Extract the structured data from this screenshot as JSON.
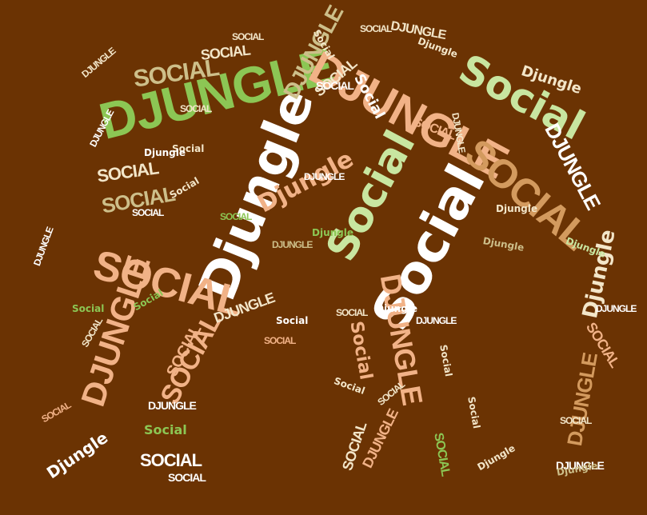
{
  "background": "#6b3303",
  "palette": {
    "white": "#ffffff",
    "cream": "#f3e6c9",
    "peach": "#f1b287",
    "green": "#8cc654",
    "pale_green": "#c8e6a0",
    "tan": "#d39a5e",
    "khaki": "#cdbf8a"
  },
  "words": [
    {
      "text": "DJUNGLE"
    },
    {
      "text": "Djungle"
    },
    {
      "text": "Social"
    },
    {
      "text": "Social"
    },
    {
      "text": "DJUNGLE"
    },
    {
      "text": "Social"
    },
    {
      "text": "SOCIAL"
    },
    {
      "text": "SOCIAL"
    },
    {
      "text": "SOCIAL"
    },
    {
      "text": "DJUNGLE"
    },
    {
      "text": "DJUNGLE"
    },
    {
      "text": "DJUNGLE"
    },
    {
      "text": "DJUNGLE"
    },
    {
      "text": "DJUNGLE"
    },
    {
      "text": "Djungle"
    },
    {
      "text": "Djungle"
    },
    {
      "text": "SOCIAL"
    },
    {
      "text": "SOCIAL"
    },
    {
      "text": "SOCIAL"
    },
    {
      "text": "SOCIAL"
    },
    {
      "text": "SOCIAL"
    },
    {
      "text": "SOCIAL"
    },
    {
      "text": "DJUNGLE"
    },
    {
      "text": "Social"
    },
    {
      "text": "SOCIAL"
    },
    {
      "text": "Djungle"
    },
    {
      "text": "SOCIAL"
    },
    {
      "text": "Social"
    },
    {
      "text": "DJUNGLE"
    },
    {
      "text": "Djungle"
    },
    {
      "text": "SOCIAL"
    },
    {
      "text": "DJUNGLE"
    },
    {
      "text": "Social"
    },
    {
      "text": "SOCIAL"
    },
    {
      "text": "DJUNGLE"
    },
    {
      "text": "SOCIAL"
    },
    {
      "text": "SOCIAL"
    },
    {
      "text": "SOCIAL"
    },
    {
      "text": "DJUNGLE"
    },
    {
      "text": "Social"
    },
    {
      "text": "Djungle"
    },
    {
      "text": "SOCIAL"
    },
    {
      "text": "DJUNGLE"
    },
    {
      "text": "Social"
    },
    {
      "text": "Djungle"
    },
    {
      "text": "DJUNGLE"
    },
    {
      "text": "SOCIAL"
    },
    {
      "text": "Djungle"
    },
    {
      "text": "Social"
    },
    {
      "text": "SOCIAL"
    },
    {
      "text": "SOCIAL"
    },
    {
      "text": "DJUNGLE"
    },
    {
      "text": "Djungle"
    },
    {
      "text": "Social"
    },
    {
      "text": "SOCIAL"
    },
    {
      "text": "DJUNGLE"
    },
    {
      "text": "Djungle"
    },
    {
      "text": "SOCIAL"
    },
    {
      "text": "Social"
    },
    {
      "text": "Djungle"
    },
    {
      "text": "SOCIAL"
    },
    {
      "text": "DJUNGLE"
    },
    {
      "text": "Social"
    },
    {
      "text": "SOCIAL"
    },
    {
      "text": "Djungle"
    },
    {
      "text": "Social"
    },
    {
      "text": "DJUNGLE"
    },
    {
      "text": "SOCIAL"
    },
    {
      "text": "Djungle"
    },
    {
      "text": "Social"
    },
    {
      "text": "SOCIAL"
    },
    {
      "text": "DJUNGLE"
    },
    {
      "text": "Social"
    },
    {
      "text": "Djungle"
    },
    {
      "text": "SOCIAL"
    },
    {
      "text": "DJUNGLE"
    }
  ]
}
